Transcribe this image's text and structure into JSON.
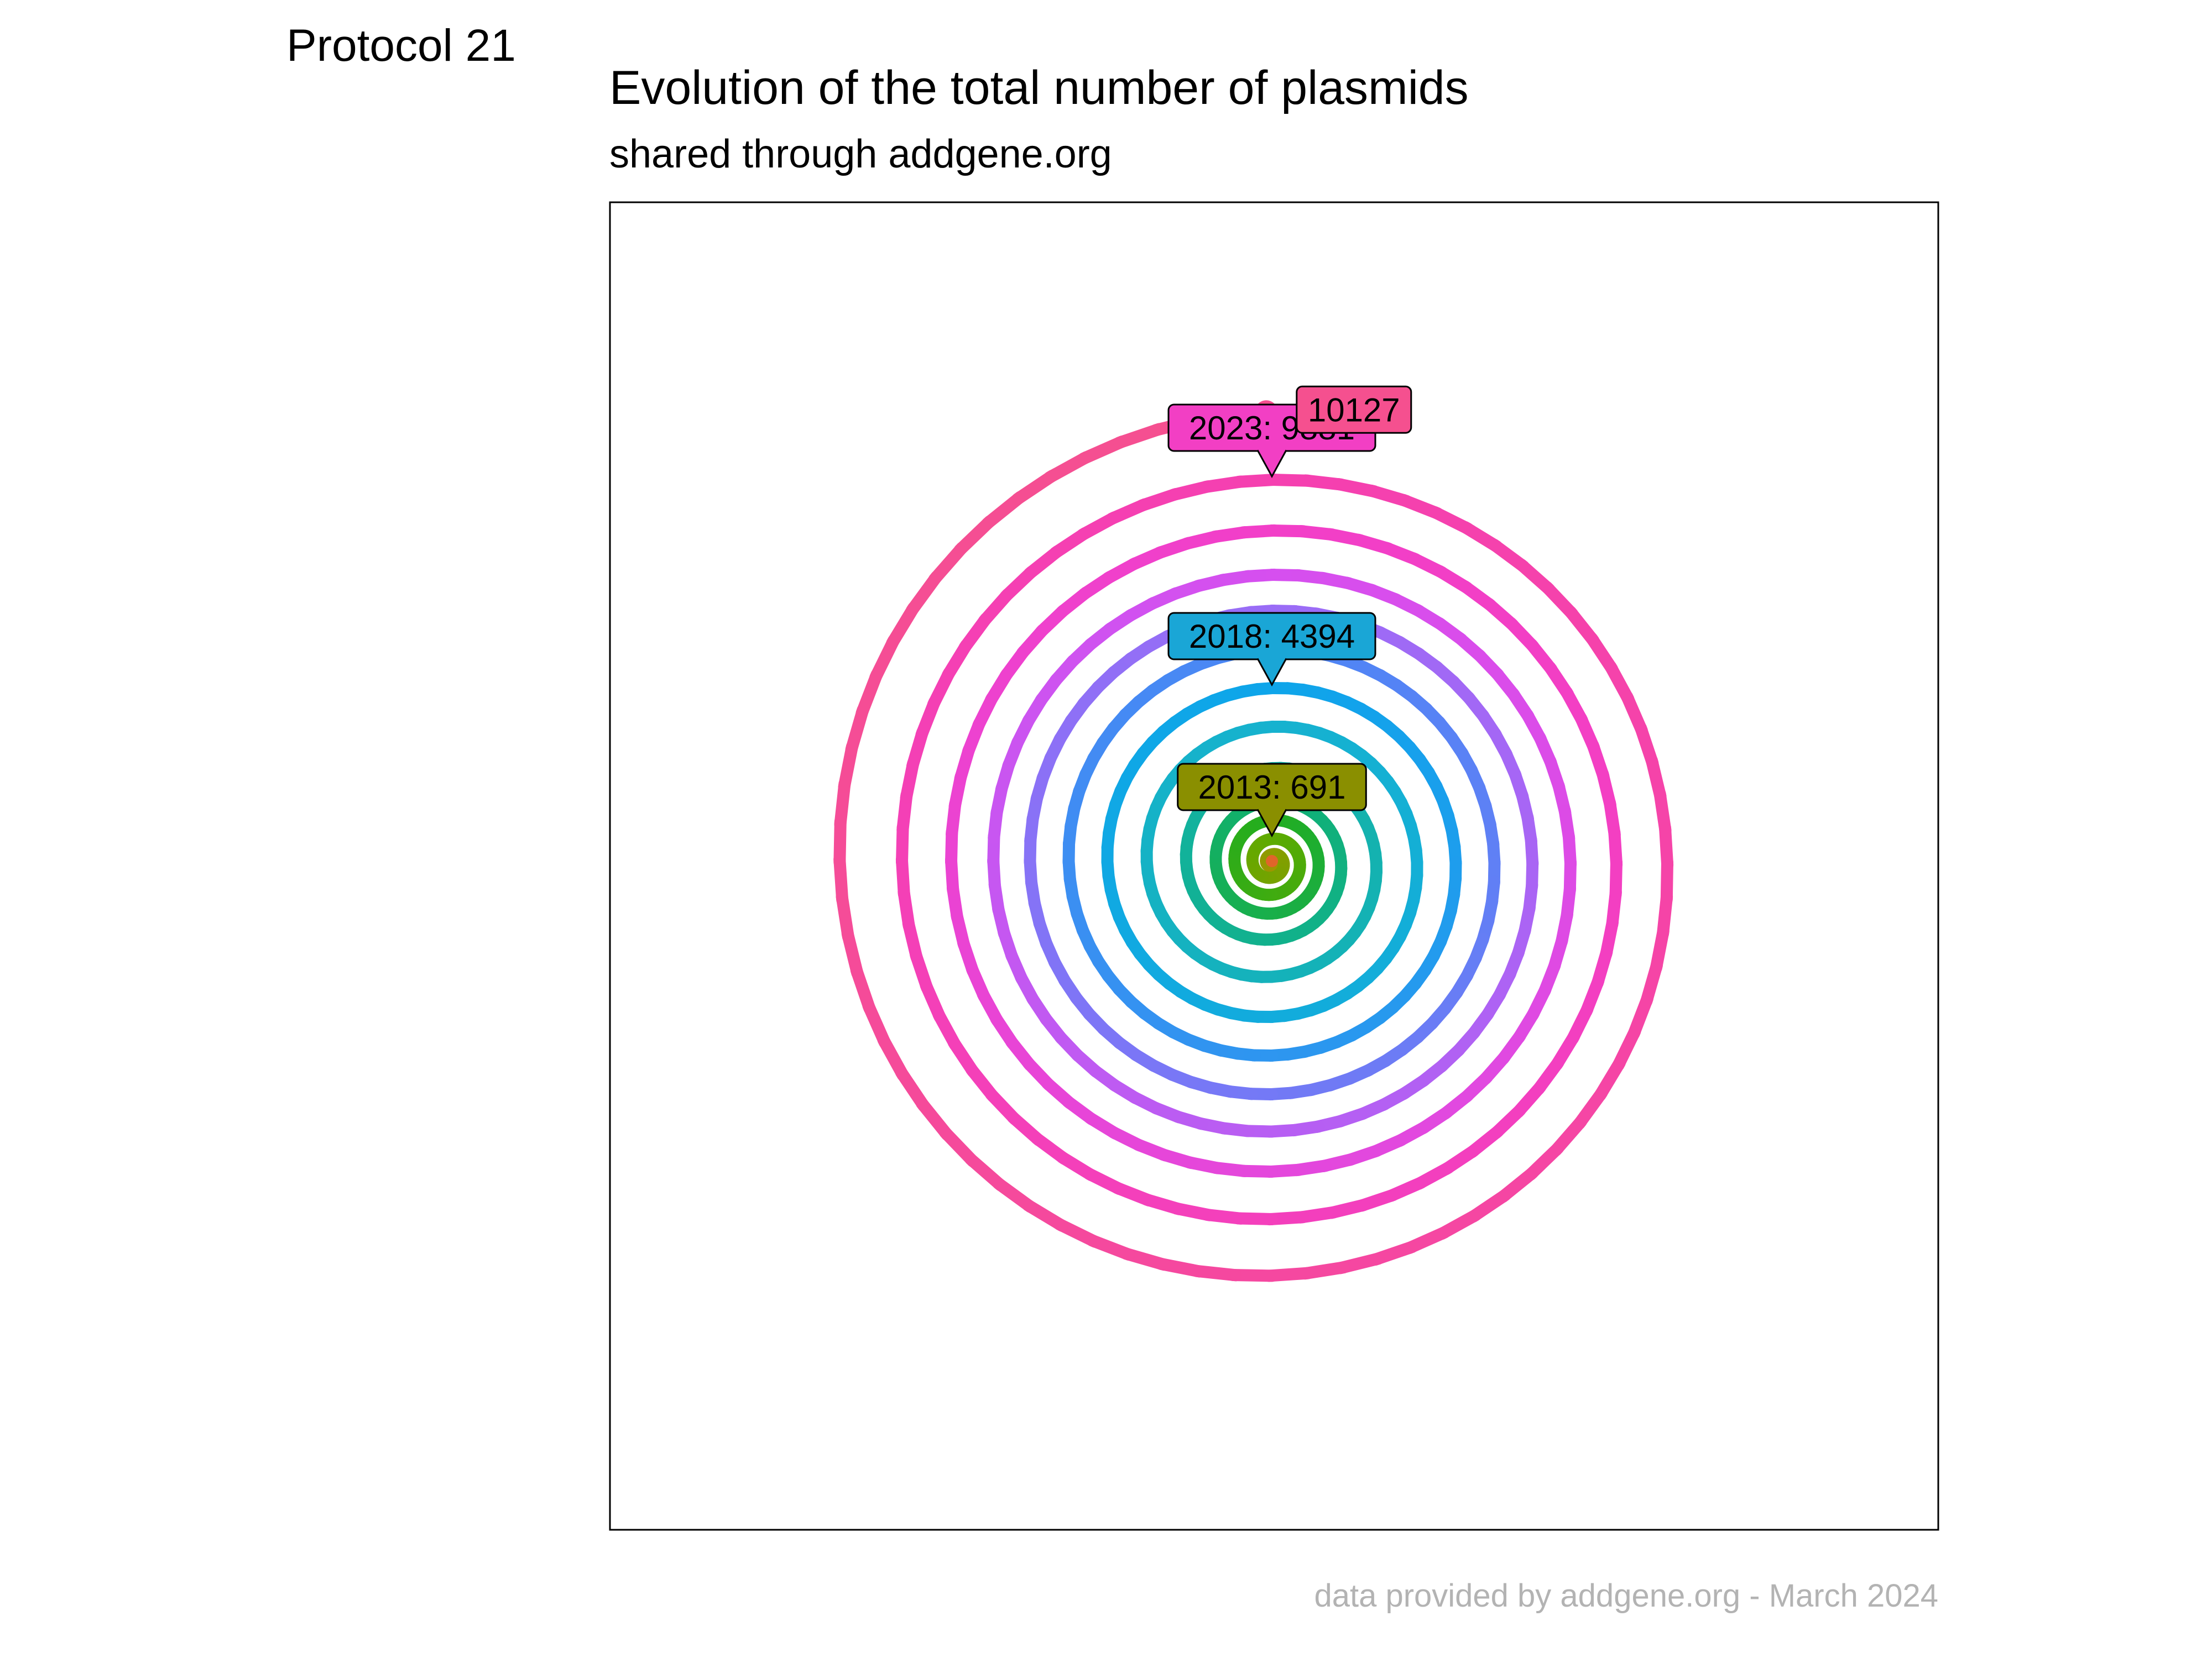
{
  "protocol_label": "Protocol 21",
  "caption": "data provided by addgene.org - March 2024",
  "chart_data": {
    "type": "spiral",
    "title": "Evolution of the total number of plasmids",
    "subtitle": "shared through addgene.org",
    "direction": "clockwise from top, one turn per year",
    "grid": false,
    "frame": true,
    "start_year": 2010,
    "end_year": 2024,
    "end_value": 10127,
    "annotations": [
      {
        "year": 2013,
        "value": 691,
        "label": "2013: 691",
        "color": "#8a8f00"
      },
      {
        "year": 2018,
        "value": 4394,
        "label": "2018: 4394",
        "color": "#1aa6d6"
      },
      {
        "year": 2023,
        "value": 9881,
        "label": "2023: 9881",
        "color": "#f23fc4"
      }
    ],
    "end_label": {
      "label": "10127",
      "color": "#f5508f"
    },
    "color_stops": [
      {
        "year": 2010,
        "color": "#e0652a"
      },
      {
        "year": 2011,
        "color": "#b78f00"
      },
      {
        "year": 2012,
        "color": "#8f9a00"
      },
      {
        "year": 2013,
        "color": "#5faa00"
      },
      {
        "year": 2014,
        "color": "#22ad1f"
      },
      {
        "year": 2015,
        "color": "#10b072"
      },
      {
        "year": 2016,
        "color": "#13b2a6"
      },
      {
        "year": 2017,
        "color": "#16b2cf"
      },
      {
        "year": 2018,
        "color": "#0ea5ea"
      },
      {
        "year": 2019,
        "color": "#4d86f5"
      },
      {
        "year": 2020,
        "color": "#9a6cf6"
      },
      {
        "year": 2021,
        "color": "#d64fef"
      },
      {
        "year": 2022,
        "color": "#f23fc8"
      },
      {
        "year": 2023,
        "color": "#f540b0"
      },
      {
        "year": 2024,
        "color": "#f5508f"
      }
    ]
  }
}
